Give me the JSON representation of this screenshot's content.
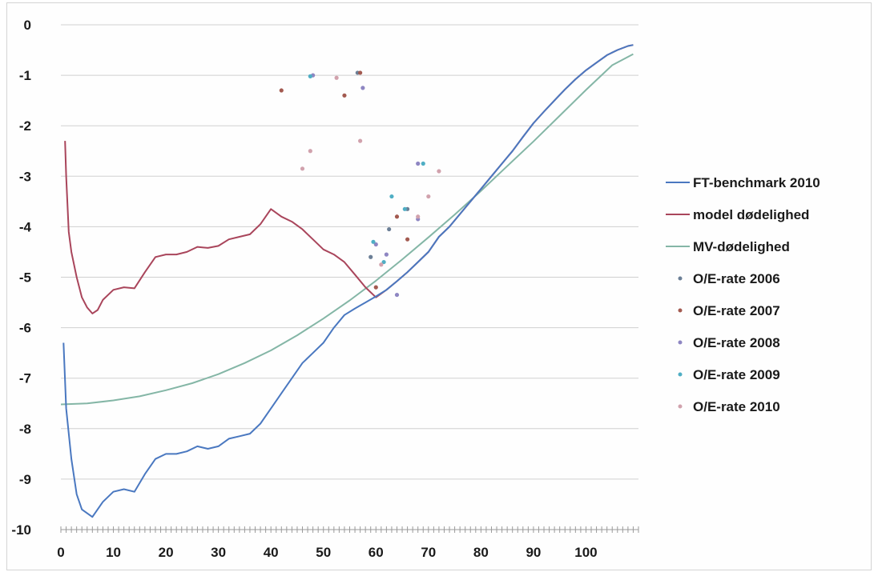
{
  "chart_data": {
    "type": "line",
    "title": "",
    "xlabel": "",
    "ylabel": "",
    "xlim": [
      0,
      110
    ],
    "ylim": [
      -10,
      0
    ],
    "x_ticks": [
      0,
      10,
      20,
      30,
      40,
      50,
      60,
      70,
      80,
      90,
      100
    ],
    "y_ticks": [
      0,
      -1,
      -2,
      -3,
      -4,
      -5,
      -6,
      -7,
      -8,
      -9,
      -10
    ],
    "x_tick_labels": [
      "0",
      "10",
      "20",
      "30",
      "40",
      "50",
      "60",
      "70",
      "80",
      "90",
      "100"
    ],
    "y_tick_labels": [
      "0",
      "-1",
      "-2",
      "-3",
      "-4",
      "-5",
      "-6",
      "-7",
      "-8",
      "-9",
      "-10"
    ],
    "grid": "horizontal",
    "legend_position": "right",
    "line_series": [
      {
        "name": "FT-benchmark 2010",
        "color": "#4a78c0",
        "points": [
          [
            0.5,
            -6.3
          ],
          [
            1,
            -7.6
          ],
          [
            2,
            -8.6
          ],
          [
            3,
            -9.3
          ],
          [
            4,
            -9.6
          ],
          [
            6,
            -9.75
          ],
          [
            8,
            -9.45
          ],
          [
            10,
            -9.25
          ],
          [
            12,
            -9.2
          ],
          [
            14,
            -9.25
          ],
          [
            16,
            -8.9
          ],
          [
            18,
            -8.6
          ],
          [
            20,
            -8.5
          ],
          [
            22,
            -8.5
          ],
          [
            24,
            -8.45
          ],
          [
            26,
            -8.35
          ],
          [
            28,
            -8.4
          ],
          [
            30,
            -8.35
          ],
          [
            32,
            -8.2
          ],
          [
            34,
            -8.15
          ],
          [
            36,
            -8.1
          ],
          [
            38,
            -7.9
          ],
          [
            40,
            -7.6
          ],
          [
            42,
            -7.3
          ],
          [
            44,
            -7.0
          ],
          [
            46,
            -6.7
          ],
          [
            48,
            -6.5
          ],
          [
            50,
            -6.3
          ],
          [
            52,
            -6.0
          ],
          [
            54,
            -5.75
          ],
          [
            56,
            -5.62
          ],
          [
            58,
            -5.5
          ],
          [
            60,
            -5.38
          ],
          [
            62,
            -5.25
          ],
          [
            64,
            -5.08
          ],
          [
            66,
            -4.9
          ],
          [
            68,
            -4.7
          ],
          [
            70,
            -4.5
          ],
          [
            72,
            -4.2
          ],
          [
            74,
            -4.0
          ],
          [
            76,
            -3.75
          ],
          [
            78,
            -3.5
          ],
          [
            80,
            -3.25
          ],
          [
            82,
            -3.0
          ],
          [
            84,
            -2.75
          ],
          [
            86,
            -2.5
          ],
          [
            88,
            -2.22
          ],
          [
            90,
            -1.95
          ],
          [
            92,
            -1.72
          ],
          [
            94,
            -1.5
          ],
          [
            96,
            -1.28
          ],
          [
            98,
            -1.08
          ],
          [
            100,
            -0.9
          ],
          [
            102,
            -0.75
          ],
          [
            104,
            -0.6
          ],
          [
            106,
            -0.5
          ],
          [
            108,
            -0.42
          ],
          [
            109,
            -0.4
          ]
        ]
      },
      {
        "name": "model dødelighed",
        "color": "#a9455b",
        "points": [
          [
            0.8,
            -2.3
          ],
          [
            1,
            -3.0
          ],
          [
            1.5,
            -4.1
          ],
          [
            2,
            -4.5
          ],
          [
            3,
            -5.0
          ],
          [
            4,
            -5.4
          ],
          [
            5,
            -5.6
          ],
          [
            6,
            -5.72
          ],
          [
            7,
            -5.65
          ],
          [
            8,
            -5.45
          ],
          [
            10,
            -5.25
          ],
          [
            12,
            -5.2
          ],
          [
            14,
            -5.22
          ],
          [
            16,
            -4.9
          ],
          [
            18,
            -4.6
          ],
          [
            20,
            -4.55
          ],
          [
            22,
            -4.55
          ],
          [
            24,
            -4.5
          ],
          [
            26,
            -4.4
          ],
          [
            28,
            -4.42
          ],
          [
            30,
            -4.38
          ],
          [
            32,
            -4.25
          ],
          [
            34,
            -4.2
          ],
          [
            36,
            -4.15
          ],
          [
            38,
            -3.95
          ],
          [
            40,
            -3.65
          ],
          [
            42,
            -3.8
          ],
          [
            44,
            -3.9
          ],
          [
            46,
            -4.05
          ],
          [
            48,
            -4.25
          ],
          [
            50,
            -4.45
          ],
          [
            52,
            -4.55
          ],
          [
            54,
            -4.7
          ],
          [
            56,
            -4.95
          ],
          [
            58,
            -5.2
          ],
          [
            60,
            -5.4
          ],
          [
            62,
            -5.25
          ],
          [
            64,
            -5.08
          ],
          [
            66,
            -4.9
          ],
          [
            68,
            -4.7
          ],
          [
            70,
            -4.5
          ],
          [
            72,
            -4.2
          ],
          [
            74,
            -4.0
          ],
          [
            76,
            -3.75
          ],
          [
            78,
            -3.5
          ],
          [
            80,
            -3.25
          ],
          [
            82,
            -3.0
          ],
          [
            84,
            -2.75
          ],
          [
            86,
            -2.5
          ],
          [
            88,
            -2.22
          ],
          [
            90,
            -1.95
          ],
          [
            92,
            -1.72
          ],
          [
            94,
            -1.5
          ],
          [
            96,
            -1.28
          ],
          [
            98,
            -1.08
          ],
          [
            100,
            -0.9
          ],
          [
            102,
            -0.75
          ],
          [
            104,
            -0.6
          ],
          [
            106,
            -0.5
          ],
          [
            108,
            -0.42
          ],
          [
            109,
            -0.4
          ]
        ]
      },
      {
        "name": "MV-dødelighed",
        "color": "#84b6a6",
        "points": [
          [
            0,
            -7.52
          ],
          [
            5,
            -7.5
          ],
          [
            10,
            -7.44
          ],
          [
            15,
            -7.36
          ],
          [
            20,
            -7.24
          ],
          [
            25,
            -7.1
          ],
          [
            30,
            -6.92
          ],
          [
            35,
            -6.7
          ],
          [
            40,
            -6.45
          ],
          [
            45,
            -6.15
          ],
          [
            50,
            -5.82
          ],
          [
            55,
            -5.46
          ],
          [
            60,
            -5.07
          ],
          [
            65,
            -4.65
          ],
          [
            70,
            -4.21
          ],
          [
            75,
            -3.76
          ],
          [
            80,
            -3.29
          ],
          [
            85,
            -2.8
          ],
          [
            90,
            -2.31
          ],
          [
            95,
            -1.8
          ],
          [
            100,
            -1.29
          ],
          [
            105,
            -0.8
          ],
          [
            109,
            -0.58
          ]
        ]
      }
    ],
    "scatter_series": [
      {
        "name": "O/E-rate 2006",
        "color": "#6b7f96",
        "points": [
          [
            56.5,
            -0.95
          ],
          [
            62.5,
            -4.05
          ],
          [
            66,
            -3.65
          ],
          [
            59,
            -4.6
          ]
        ]
      },
      {
        "name": "O/E-rate 2007",
        "color": "#a35a50",
        "points": [
          [
            42,
            -1.3
          ],
          [
            54,
            -1.4
          ],
          [
            57,
            -0.95
          ],
          [
            64,
            -3.8
          ],
          [
            66,
            -4.25
          ],
          [
            60,
            -5.2
          ]
        ]
      },
      {
        "name": "O/E-rate 2008",
        "color": "#8e86c2",
        "points": [
          [
            48,
            -1.0
          ],
          [
            60,
            -4.35
          ],
          [
            62,
            -4.55
          ],
          [
            64,
            -5.35
          ],
          [
            68,
            -3.85
          ],
          [
            68,
            -2.75
          ],
          [
            57.5,
            -1.25
          ]
        ]
      },
      {
        "name": "O/E-rate 2009",
        "color": "#4faec4",
        "points": [
          [
            47.5,
            -1.02
          ],
          [
            59.5,
            -4.3
          ],
          [
            63,
            -3.4
          ],
          [
            65.5,
            -3.65
          ],
          [
            69,
            -2.75
          ],
          [
            61.5,
            -4.7
          ]
        ]
      },
      {
        "name": "O/E-rate 2010",
        "color": "#d1a2ad",
        "points": [
          [
            46,
            -2.85
          ],
          [
            47.5,
            -2.5
          ],
          [
            52.5,
            -1.05
          ],
          [
            57,
            -2.3
          ],
          [
            70,
            -3.4
          ],
          [
            72,
            -2.9
          ],
          [
            68,
            -3.8
          ],
          [
            61,
            -4.75
          ]
        ]
      }
    ]
  }
}
